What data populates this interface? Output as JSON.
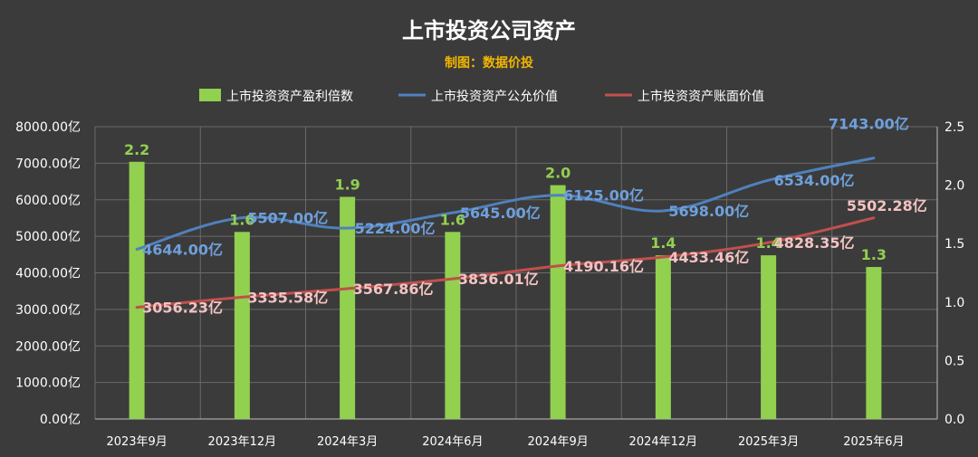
{
  "chart_data": {
    "type": "bar+line",
    "title": "上市投资公司资产",
    "subtitle": "制图：数据价投",
    "categories": [
      "2023年9月",
      "2023年12月",
      "2024年3月",
      "2024年6月",
      "2024年9月",
      "2024年12月",
      "2025年3月",
      "2025年6月"
    ],
    "legend_position": "top",
    "grid": true,
    "colors": {
      "background": "#3b3b3b",
      "bar": "#92d050",
      "fair_line": "#4f81bd",
      "book_line": "#c0504d",
      "fair_label": "#6fa0dc",
      "book_label": "#f4c2c2",
      "subtitle": "#f2b600"
    },
    "y_left": {
      "ylim": [
        0,
        8000
      ],
      "ticks": [
        0,
        1000,
        2000,
        3000,
        4000,
        5000,
        6000,
        7000,
        8000
      ],
      "tick_labels": [
        "0.00亿",
        "1000.00亿",
        "2000.00亿",
        "3000.00亿",
        "4000.00亿",
        "5000.00亿",
        "6000.00亿",
        "7000.00亿",
        "8000.00亿"
      ]
    },
    "y_right": {
      "ylim": [
        0,
        2.5
      ],
      "ticks": [
        0,
        0.5,
        1,
        1.5,
        2,
        2.5
      ],
      "tick_labels": [
        "0.0",
        "0.5",
        "1.0",
        "1.5",
        "2.0",
        "2.5"
      ]
    },
    "series": [
      {
        "name": "上市投资资产盈利倍数",
        "type": "bar",
        "axis": "right",
        "values": [
          2.2,
          1.6,
          1.9,
          1.6,
          2.0,
          1.4,
          1.4,
          1.3
        ],
        "labels": [
          "2.2",
          "1.6",
          "1.9",
          "1.6",
          "2.0",
          "1.4",
          "1.4",
          "1.3"
        ]
      },
      {
        "name": "上市投资资产公允价值",
        "type": "line",
        "axis": "left",
        "values": [
          4644,
          5507,
          5224,
          5645,
          6125,
          5698,
          6534,
          7143
        ],
        "labels": [
          "4644.00亿",
          "5507.00亿",
          "5224.00亿",
          "5645.00亿",
          "6125.00亿",
          "5698.00亿",
          "6534.00亿",
          "7143.00亿"
        ]
      },
      {
        "name": "上市投资资产账面价值",
        "type": "line",
        "axis": "left",
        "values": [
          3056.23,
          3335.58,
          3567.86,
          3836.01,
          4190.16,
          4433.46,
          4828.35,
          5502.28
        ],
        "labels": [
          "3056.23亿",
          "3335.58亿",
          "3567.86亿",
          "3836.01亿",
          "4190.16亿",
          "4433.46亿",
          "4828.35亿",
          "5502.28亿"
        ]
      }
    ]
  }
}
